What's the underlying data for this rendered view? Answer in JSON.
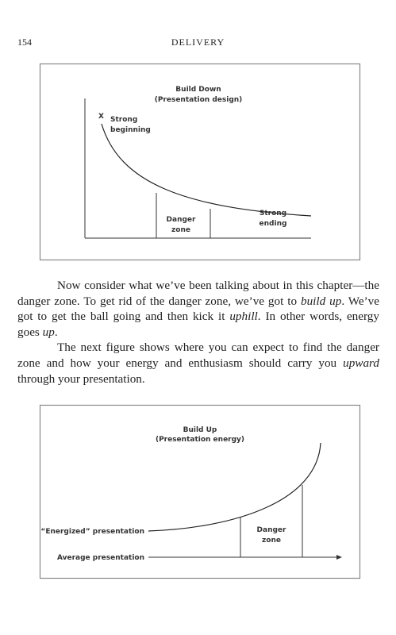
{
  "header": {
    "page_number": "154",
    "running_title": "DELIVERY"
  },
  "figure_1": {
    "title": "Build Down",
    "subtitle": "(Presentation design)",
    "start_marker": "X",
    "start_label": [
      "Strong",
      "beginning"
    ],
    "zone_label": [
      "Danger",
      "zone"
    ],
    "end_label": [
      "Strong",
      "ending"
    ]
  },
  "paragraphs": [
    [
      "Now consider what we’ve been talking about in this chapter—the danger zone. To get rid of the danger zone, we’ve got to ",
      "build up",
      ". We’ve got to get the ball going and then kick it ",
      "uphill",
      ". In other words, energy goes ",
      "up",
      "."
    ],
    [
      "The next figure shows where you can expect to find the danger zone and how your energy and enthusiasm should carry you ",
      "upward",
      " through your presentation."
    ]
  ],
  "figure_2": {
    "title": "Build Up",
    "subtitle": "(Presentation energy)",
    "upper_label": "“Energized” presentation",
    "lower_label": "Average presentation",
    "zone_label": [
      "Danger",
      "zone"
    ]
  }
}
